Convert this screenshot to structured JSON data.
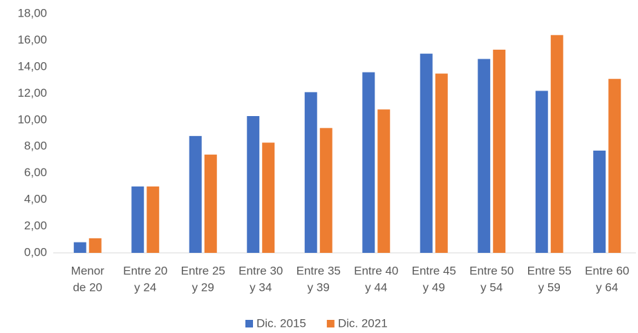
{
  "chart_data": {
    "type": "bar",
    "categories": [
      [
        "Menor",
        "de 20"
      ],
      [
        "Entre 20",
        "y 24"
      ],
      [
        "Entre 25",
        "y 29"
      ],
      [
        "Entre 30",
        "y 34"
      ],
      [
        "Entre 35",
        "y 39"
      ],
      [
        "Entre 40",
        "y 44"
      ],
      [
        "Entre 45",
        "y 49"
      ],
      [
        "Entre 50",
        "y 54"
      ],
      [
        "Entre 55",
        "y 59"
      ],
      [
        "Entre 60",
        "y 64"
      ]
    ],
    "series": [
      {
        "name": "Dic. 2015",
        "color": "#4472c4",
        "values": [
          0.8,
          5.0,
          8.8,
          10.3,
          12.1,
          13.6,
          15.0,
          14.6,
          12.2,
          7.7
        ]
      },
      {
        "name": "Dic. 2021",
        "color": "#ed7d31",
        "values": [
          1.1,
          5.0,
          7.4,
          8.3,
          9.4,
          10.8,
          13.5,
          15.3,
          16.4,
          13.1
        ]
      }
    ],
    "ylim": [
      0,
      18
    ],
    "yticks": [
      {
        "value": 0,
        "label": "0,00"
      },
      {
        "value": 2,
        "label": "2,00"
      },
      {
        "value": 4,
        "label": "4,00"
      },
      {
        "value": 6,
        "label": "6,00"
      },
      {
        "value": 8,
        "label": "8,00"
      },
      {
        "value": 10,
        "label": "10,00"
      },
      {
        "value": 12,
        "label": "12,00"
      },
      {
        "value": 14,
        "label": "14,00"
      },
      {
        "value": 16,
        "label": "16,00"
      },
      {
        "value": 18,
        "label": "18,00"
      }
    ],
    "grid": false,
    "legend": "bottom"
  }
}
